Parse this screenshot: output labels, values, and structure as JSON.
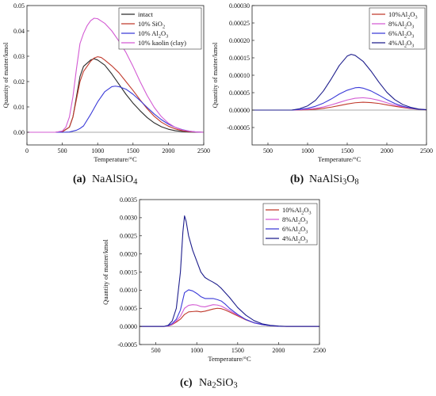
{
  "chart_data": [
    {
      "type": "line",
      "caption_letter": "(a)",
      "caption_formula": "NaAlSiO4",
      "xlabel": "Temperature/°C",
      "ylabel": "Quantity of matter/kmol",
      "xlim": [
        0,
        2500
      ],
      "ylim": [
        -0.005,
        0.05
      ],
      "xticks": [
        0,
        500,
        1000,
        1500,
        2000,
        2500
      ],
      "yticks": [
        0.0,
        0.01,
        0.02,
        0.03,
        0.04,
        0.05
      ],
      "ytick_labels": [
        "0.00",
        "0.01",
        "0.02",
        "0.03",
        "0.04",
        "0.05"
      ],
      "legend": "top-right",
      "series": [
        {
          "name": "intact",
          "color": "#2b2b2b",
          "x": [
            0,
            400,
            500,
            600,
            650,
            700,
            750,
            800,
            900,
            950,
            1000,
            1100,
            1200,
            1300,
            1400,
            1500,
            1600,
            1700,
            1800,
            1900,
            2000,
            2100,
            2200,
            2300,
            2400,
            2500
          ],
          "y": [
            0,
            0,
            0.0002,
            0.002,
            0.006,
            0.014,
            0.022,
            0.026,
            0.0285,
            0.029,
            0.0285,
            0.0265,
            0.023,
            0.019,
            0.015,
            0.0115,
            0.0085,
            0.0058,
            0.0037,
            0.0022,
            0.0012,
            0.0006,
            0.0003,
            0.0001,
            0,
            0
          ]
        },
        {
          "name": "10% SiO2",
          "color": "#c0392b",
          "x": [
            0,
            400,
            500,
            600,
            650,
            700,
            750,
            800,
            900,
            950,
            1000,
            1050,
            1100,
            1200,
            1300,
            1400,
            1500,
            1600,
            1700,
            1800,
            1900,
            2000,
            2100,
            2200,
            2300,
            2400,
            2500
          ],
          "y": [
            0,
            0,
            0.0002,
            0.002,
            0.006,
            0.013,
            0.02,
            0.024,
            0.028,
            0.0293,
            0.0298,
            0.0295,
            0.0285,
            0.0262,
            0.0235,
            0.02,
            0.0165,
            0.0128,
            0.0093,
            0.0063,
            0.004,
            0.0024,
            0.0013,
            0.0006,
            0.0002,
            0.0001,
            0
          ]
        },
        {
          "name": "10% Al2O3",
          "color": "#3a3ad8",
          "x": [
            0,
            500,
            600,
            700,
            750,
            800,
            900,
            1000,
            1100,
            1200,
            1250,
            1300,
            1400,
            1500,
            1600,
            1700,
            1800,
            1900,
            2000,
            2100,
            2200,
            2300,
            2400,
            2500
          ],
          "y": [
            0,
            0,
            0.0001,
            0.0008,
            0.0015,
            0.0025,
            0.007,
            0.012,
            0.016,
            0.018,
            0.0182,
            0.018,
            0.017,
            0.015,
            0.0125,
            0.0098,
            0.0072,
            0.005,
            0.0032,
            0.0019,
            0.001,
            0.0004,
            0.0001,
            0
          ]
        },
        {
          "name": "10% kaolin (clay)",
          "color": "#d35bd3",
          "x": [
            0,
            400,
            500,
            550,
            600,
            650,
            700,
            750,
            800,
            850,
            900,
            950,
            1000,
            1100,
            1200,
            1300,
            1400,
            1500,
            1600,
            1700,
            1800,
            1900,
            2000,
            2100,
            2200,
            2300,
            2400,
            2500
          ],
          "y": [
            0,
            0,
            0.0005,
            0.002,
            0.006,
            0.014,
            0.025,
            0.035,
            0.039,
            0.042,
            0.044,
            0.045,
            0.0448,
            0.043,
            0.04,
            0.036,
            0.0315,
            0.026,
            0.02,
            0.0145,
            0.0098,
            0.0062,
            0.0036,
            0.0019,
            0.0009,
            0.0004,
            0.0001,
            0
          ]
        }
      ]
    },
    {
      "type": "line",
      "caption_letter": "(b)",
      "caption_formula": "NaAlSi3O8",
      "xlabel": "Temperature/°C",
      "ylabel": "Quantity of matter/kmol",
      "xlim": [
        300,
        2500
      ],
      "ylim": [
        -0.0001,
        0.0003
      ],
      "xticks": [
        500,
        1000,
        1500,
        2000,
        2500
      ],
      "yticks": [
        -5e-05,
        0,
        5e-05,
        0.0001,
        0.00015,
        0.0002,
        0.00025,
        0.0003
      ],
      "ytick_labels": [
        "-0.00005",
        "0.00000",
        "0.00005",
        "0.00010",
        "0.00015",
        "0.00020",
        "0.00025",
        "0.00030"
      ],
      "legend": "top-right",
      "series": [
        {
          "name": "10%Al2O3",
          "color": "#c0392b",
          "x": [
            300,
            800,
            900,
            1000,
            1100,
            1200,
            1300,
            1400,
            1500,
            1600,
            1700,
            1800,
            1900,
            2000,
            2100,
            2200,
            2300,
            2400,
            2500
          ],
          "y": [
            0,
            0,
            5e-07,
            1e-06,
            2.5e-06,
            5e-06,
            8.5e-06,
            1.3e-05,
            1.75e-05,
            2.1e-05,
            2.25e-05,
            2.15e-05,
            1.9e-05,
            1.5e-05,
            1.1e-05,
            7.5e-06,
            4.5e-06,
            2e-06,
            8e-07
          ]
        },
        {
          "name": "8%Al2O3",
          "color": "#d35bd3",
          "x": [
            300,
            800,
            900,
            1000,
            1100,
            1200,
            1300,
            1400,
            1500,
            1600,
            1700,
            1800,
            1900,
            2000,
            2100,
            2200,
            2300,
            2400,
            2500
          ],
          "y": [
            0,
            0,
            1e-06,
            2.5e-06,
            5e-06,
            9e-06,
            1.5e-05,
            2.2e-05,
            2.9e-05,
            3.4e-05,
            3.55e-05,
            3.3e-05,
            2.8e-05,
            2.1e-05,
            1.45e-05,
            9.5e-06,
            5.5e-06,
            2.5e-06,
            1e-06
          ]
        },
        {
          "name": "6%Al2O3",
          "color": "#3a3ad8",
          "x": [
            300,
            800,
            900,
            1000,
            1100,
            1200,
            1300,
            1400,
            1500,
            1600,
            1650,
            1700,
            1800,
            1900,
            2000,
            2100,
            2200,
            2300,
            2400,
            2500
          ],
          "y": [
            0,
            0,
            2e-06,
            5e-06,
            1.1e-05,
            2e-05,
            3.2e-05,
            4.6e-05,
            5.7e-05,
            6.4e-05,
            6.5e-05,
            6.3e-05,
            5.5e-05,
            4.3e-05,
            3e-05,
            1.9e-05,
            1.1e-05,
            6e-06,
            2.5e-06,
            1e-06
          ]
        },
        {
          "name": "4%Al2O3",
          "color": "#1e1e8c",
          "x": [
            300,
            800,
            900,
            1000,
            1100,
            1200,
            1300,
            1400,
            1500,
            1550,
            1600,
            1700,
            1800,
            1900,
            2000,
            2100,
            2200,
            2300,
            2400,
            2500
          ],
          "y": [
            0,
            0,
            4e-06,
            1.2e-05,
            2.8e-05,
            5.5e-05,
            9e-05,
            0.000128,
            0.000155,
            0.00016,
            0.000157,
            0.00014,
            0.000112,
            8e-05,
            5.1e-05,
            3e-05,
            1.6e-05,
            8e-06,
            3e-06,
            1e-06
          ]
        }
      ]
    },
    {
      "type": "line",
      "caption_letter": "(c)",
      "caption_formula": "Na2SiO3",
      "xlabel": "Temperature/°C",
      "ylabel": "Quantity of matter/kmol",
      "xlim": [
        300,
        2500
      ],
      "ylim": [
        -0.0005,
        0.0035
      ],
      "xticks": [
        500,
        1000,
        1500,
        2000,
        2500
      ],
      "yticks": [
        -0.0005,
        0,
        0.0005,
        0.001,
        0.0015,
        0.002,
        0.0025,
        0.003,
        0.0035
      ],
      "ytick_labels": [
        "-0.0005",
        "0.0000",
        "0.0005",
        "0.0010",
        "0.0015",
        "0.0020",
        "0.0025",
        "0.0030",
        "0.0035"
      ],
      "legend": "top-right",
      "series": [
        {
          "name": "10%Al2O3",
          "color": "#c0392b",
          "x": [
            300,
            600,
            650,
            700,
            750,
            800,
            850,
            900,
            950,
            1000,
            1050,
            1100,
            1150,
            1200,
            1250,
            1300,
            1350,
            1400,
            1500,
            1600,
            1700,
            1800,
            1900,
            2000,
            2100,
            2500
          ],
          "y": [
            0,
            0,
            1e-05,
            5e-05,
            0.00012,
            0.0002,
            0.00033,
            0.0004,
            0.00041,
            0.00042,
            0.0004,
            0.00042,
            0.00045,
            0.00048,
            0.0005,
            0.00049,
            0.00045,
            0.0004,
            0.00029,
            0.00018,
            0.0001,
            5e-05,
            2e-05,
            5e-06,
            0,
            0
          ]
        },
        {
          "name": "8%Al2O3",
          "color": "#d35bd3",
          "x": [
            300,
            600,
            650,
            700,
            750,
            800,
            850,
            900,
            950,
            1000,
            1050,
            1100,
            1150,
            1200,
            1250,
            1300,
            1350,
            1400,
            1500,
            1600,
            1700,
            1800,
            1900,
            2000,
            2100,
            2500
          ],
          "y": [
            0,
            0,
            1e-05,
            6e-05,
            0.00015,
            0.00028,
            0.0005,
            0.00058,
            0.0006,
            0.00059,
            0.00055,
            0.00054,
            0.00057,
            0.0006,
            0.00059,
            0.00056,
            0.0005,
            0.00044,
            0.00031,
            0.00019,
            0.0001,
            5e-05,
            2e-05,
            5e-06,
            0,
            0
          ]
        },
        {
          "name": "6%Al2O3",
          "color": "#3a3ad8",
          "x": [
            300,
            600,
            650,
            700,
            750,
            800,
            850,
            900,
            950,
            1000,
            1050,
            1100,
            1150,
            1200,
            1250,
            1300,
            1350,
            1400,
            1500,
            1600,
            1700,
            1800,
            1900,
            2000,
            2100,
            2500
          ],
          "y": [
            0,
            0,
            2e-05,
            8e-05,
            0.0002,
            0.00045,
            0.00093,
            0.00101,
            0.00098,
            0.00091,
            0.00082,
            0.00077,
            0.00077,
            0.00077,
            0.00074,
            0.0007,
            0.00061,
            0.0005,
            0.00033,
            0.00019,
            0.0001,
            5e-05,
            2e-05,
            5e-06,
            0,
            0
          ]
        },
        {
          "name": "4%Al2O3",
          "color": "#1e1e8c",
          "x": [
            300,
            600,
            650,
            700,
            750,
            800,
            830,
            850,
            870,
            900,
            950,
            1000,
            1050,
            1100,
            1150,
            1200,
            1250,
            1300,
            1400,
            1500,
            1600,
            1700,
            1800,
            1900,
            2000,
            2100,
            2500
          ],
          "y": [
            0,
            0,
            3e-05,
            0.00015,
            0.0005,
            0.0015,
            0.0026,
            0.00305,
            0.0029,
            0.0025,
            0.0021,
            0.0018,
            0.0015,
            0.00135,
            0.00128,
            0.00122,
            0.00115,
            0.00105,
            0.0008,
            0.00052,
            0.00031,
            0.00016,
            7e-05,
            3e-05,
            1e-05,
            0,
            0
          ]
        }
      ]
    }
  ]
}
